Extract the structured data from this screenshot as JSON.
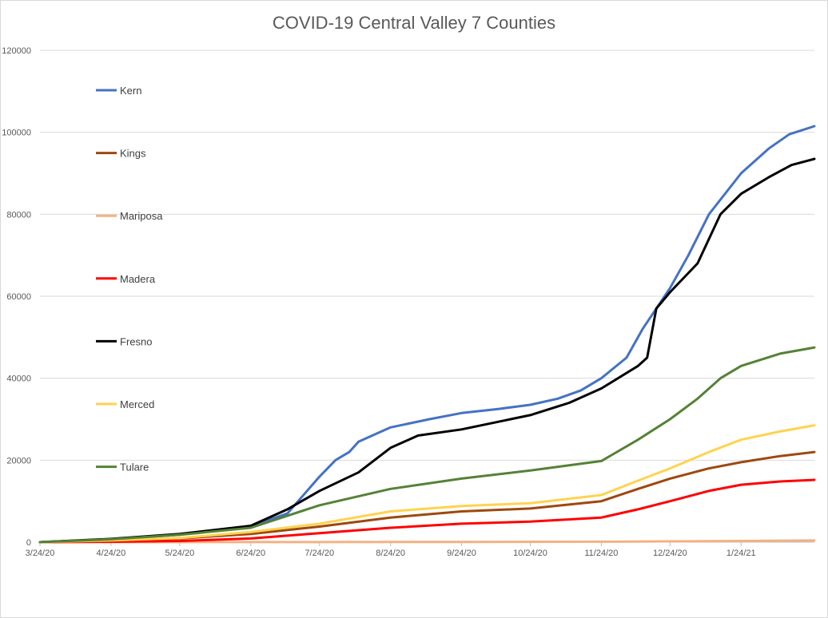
{
  "chart_data": {
    "type": "line",
    "title": "COVID-19 Central Valley 7 Counties",
    "xlabel": "",
    "ylabel": "",
    "ylim": [
      0,
      120000
    ],
    "y_ticks": [
      0,
      20000,
      40000,
      60000,
      80000,
      100000,
      120000
    ],
    "y_tick_labels": [
      "0",
      "20000",
      "40000",
      "60000",
      "80000",
      "100000",
      "120000"
    ],
    "x_ticks": [
      "3/24/20",
      "4/24/20",
      "5/24/20",
      "6/24/20",
      "7/24/20",
      "8/24/20",
      "9/24/20",
      "10/24/20",
      "11/24/20",
      "12/24/20",
      "1/24/21"
    ],
    "xlim": [
      "3/24/20",
      "2/25/21"
    ],
    "grid": true,
    "legend": "left",
    "series": [
      {
        "name": "Kern",
        "color": "#4472c4",
        "points": [
          [
            "3/24/20",
            0
          ],
          [
            "4/24/20",
            700
          ],
          [
            "5/24/20",
            1800
          ],
          [
            "6/24/20",
            3900
          ],
          [
            "7/10/20",
            7000
          ],
          [
            "7/24/20",
            16000
          ],
          [
            "7/31/20",
            20000
          ],
          [
            "8/6/20",
            22000
          ],
          [
            "8/10/20",
            24500
          ],
          [
            "8/24/20",
            28000
          ],
          [
            "9/10/20",
            30000
          ],
          [
            "9/24/20",
            31500
          ],
          [
            "10/10/20",
            32500
          ],
          [
            "10/24/20",
            33500
          ],
          [
            "11/5/20",
            35000
          ],
          [
            "11/15/20",
            37000
          ],
          [
            "11/24/20",
            40000
          ],
          [
            "12/5/20",
            45000
          ],
          [
            "12/12/20",
            52000
          ],
          [
            "12/24/20",
            62000
          ],
          [
            "1/1/21",
            70000
          ],
          [
            "1/10/21",
            80000
          ],
          [
            "1/24/21",
            90000
          ],
          [
            "2/5/21",
            96000
          ],
          [
            "2/14/21",
            99500
          ],
          [
            "2/25/21",
            101500
          ]
        ]
      },
      {
        "name": "Kings",
        "color": "#9e480e",
        "points": [
          [
            "3/24/20",
            0
          ],
          [
            "4/24/20",
            300
          ],
          [
            "5/24/20",
            900
          ],
          [
            "6/24/20",
            2000
          ],
          [
            "7/24/20",
            3800
          ],
          [
            "8/24/20",
            6000
          ],
          [
            "9/24/20",
            7500
          ],
          [
            "10/24/20",
            8200
          ],
          [
            "11/24/20",
            10000
          ],
          [
            "12/10/20",
            13000
          ],
          [
            "12/24/20",
            15500
          ],
          [
            "1/10/21",
            18000
          ],
          [
            "1/24/21",
            19500
          ],
          [
            "2/10/21",
            21000
          ],
          [
            "2/25/21",
            22000
          ]
        ]
      },
      {
        "name": "Mariposa",
        "color": "#f4b183",
        "points": [
          [
            "3/24/20",
            0
          ],
          [
            "6/24/20",
            20
          ],
          [
            "9/24/20",
            60
          ],
          [
            "11/24/20",
            120
          ],
          [
            "12/24/20",
            200
          ],
          [
            "1/24/21",
            300
          ],
          [
            "2/25/21",
            400
          ]
        ]
      },
      {
        "name": "Madera",
        "color": "#ff0000",
        "points": [
          [
            "3/24/20",
            0
          ],
          [
            "4/24/20",
            100
          ],
          [
            "5/24/20",
            300
          ],
          [
            "6/24/20",
            900
          ],
          [
            "7/24/20",
            2200
          ],
          [
            "8/24/20",
            3500
          ],
          [
            "9/24/20",
            4500
          ],
          [
            "10/24/20",
            5000
          ],
          [
            "11/24/20",
            6000
          ],
          [
            "12/10/20",
            8000
          ],
          [
            "12/24/20",
            10000
          ],
          [
            "1/10/21",
            12500
          ],
          [
            "1/24/21",
            14000
          ],
          [
            "2/10/21",
            14800
          ],
          [
            "2/25/21",
            15200
          ]
        ]
      },
      {
        "name": "Fresno",
        "color": "#000000",
        "points": [
          [
            "3/24/20",
            0
          ],
          [
            "4/24/20",
            800
          ],
          [
            "5/24/20",
            2000
          ],
          [
            "6/24/20",
            4000
          ],
          [
            "7/10/20",
            8000
          ],
          [
            "7/24/20",
            12500
          ],
          [
            "8/10/20",
            17000
          ],
          [
            "8/24/20",
            23000
          ],
          [
            "9/5/20",
            26000
          ],
          [
            "9/24/20",
            27500
          ],
          [
            "10/24/20",
            31000
          ],
          [
            "11/10/20",
            34000
          ],
          [
            "11/24/20",
            37500
          ],
          [
            "12/10/20",
            43000
          ],
          [
            "12/14/20",
            45000
          ],
          [
            "12/18/20",
            57000
          ],
          [
            "12/24/20",
            61000
          ],
          [
            "1/5/21",
            68000
          ],
          [
            "1/15/21",
            80000
          ],
          [
            "1/24/21",
            85000
          ],
          [
            "2/5/21",
            89000
          ],
          [
            "2/15/21",
            92000
          ],
          [
            "2/25/21",
            93500
          ]
        ]
      },
      {
        "name": "Merced",
        "color": "#ffd34e",
        "points": [
          [
            "3/24/20",
            0
          ],
          [
            "4/24/20",
            400
          ],
          [
            "5/24/20",
            1000
          ],
          [
            "6/24/20",
            2500
          ],
          [
            "7/24/20",
            4500
          ],
          [
            "8/24/20",
            7500
          ],
          [
            "9/24/20",
            8800
          ],
          [
            "10/24/20",
            9500
          ],
          [
            "11/24/20",
            11500
          ],
          [
            "12/10/20",
            15000
          ],
          [
            "12/24/20",
            18000
          ],
          [
            "1/10/21",
            22000
          ],
          [
            "1/24/21",
            25000
          ],
          [
            "2/10/21",
            27000
          ],
          [
            "2/25/21",
            28500
          ]
        ]
      },
      {
        "name": "Tulare",
        "color": "#548235",
        "points": [
          [
            "3/24/20",
            0
          ],
          [
            "4/24/20",
            700
          ],
          [
            "5/24/20",
            1800
          ],
          [
            "6/24/20",
            3500
          ],
          [
            "7/24/20",
            9000
          ],
          [
            "8/24/20",
            13000
          ],
          [
            "9/24/20",
            15500
          ],
          [
            "10/24/20",
            17500
          ],
          [
            "11/24/20",
            19800
          ],
          [
            "12/10/20",
            25000
          ],
          [
            "12/24/20",
            30000
          ],
          [
            "1/5/21",
            35000
          ],
          [
            "1/15/21",
            40000
          ],
          [
            "1/24/21",
            43000
          ],
          [
            "2/10/21",
            46000
          ],
          [
            "2/25/21",
            47500
          ]
        ]
      }
    ]
  }
}
